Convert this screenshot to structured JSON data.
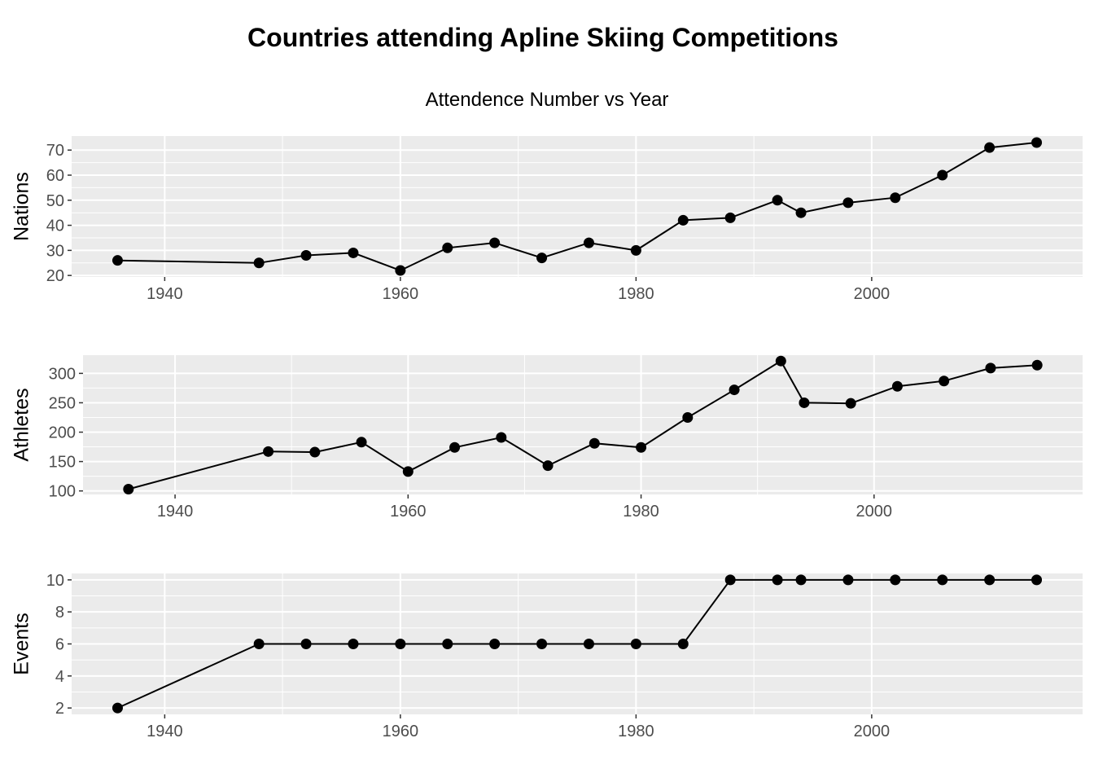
{
  "chart_data": {
    "type": "line",
    "title": "Countries attending Apline Skiing Competitions",
    "subtitle": "Attendence Number vs Year",
    "x": [
      1936,
      1948,
      1952,
      1956,
      1960,
      1964,
      1968,
      1972,
      1976,
      1980,
      1984,
      1988,
      1992,
      1994,
      1998,
      2002,
      2006,
      2010,
      2014
    ],
    "x_ticks": [
      1940,
      1960,
      1980,
      2000
    ],
    "grid": true,
    "markers": "point",
    "panels": [
      {
        "ylabel": "Nations",
        "ylim": [
          19.4,
          75.6
        ],
        "y_ticks": [
          20,
          30,
          40,
          50,
          60,
          70
        ],
        "xlim": [
          1932.1,
          2017.9
        ],
        "values": [
          26,
          25,
          28,
          29,
          22,
          31,
          33,
          27,
          33,
          30,
          42,
          43,
          50,
          45,
          49,
          51,
          60,
          71,
          73
        ]
      },
      {
        "ylabel": "Athletes",
        "ylim": [
          94,
          331
        ],
        "y_ticks": [
          100,
          150,
          200,
          250,
          300
        ],
        "xlim": [
          1932.1,
          2017.9
        ],
        "values": [
          103,
          167,
          166,
          183,
          133,
          174,
          191,
          143,
          181,
          174,
          225,
          272,
          321,
          250,
          249,
          278,
          287,
          309,
          314
        ]
      },
      {
        "ylabel": "Events",
        "ylim": [
          1.6,
          10.4
        ],
        "y_ticks": [
          2,
          4,
          6,
          8,
          10
        ],
        "xlim": [
          1932.1,
          2017.9
        ],
        "values": [
          2,
          6,
          6,
          6,
          6,
          6,
          6,
          6,
          6,
          6,
          6,
          10,
          10,
          10,
          10,
          10,
          10,
          10,
          10
        ]
      }
    ]
  }
}
